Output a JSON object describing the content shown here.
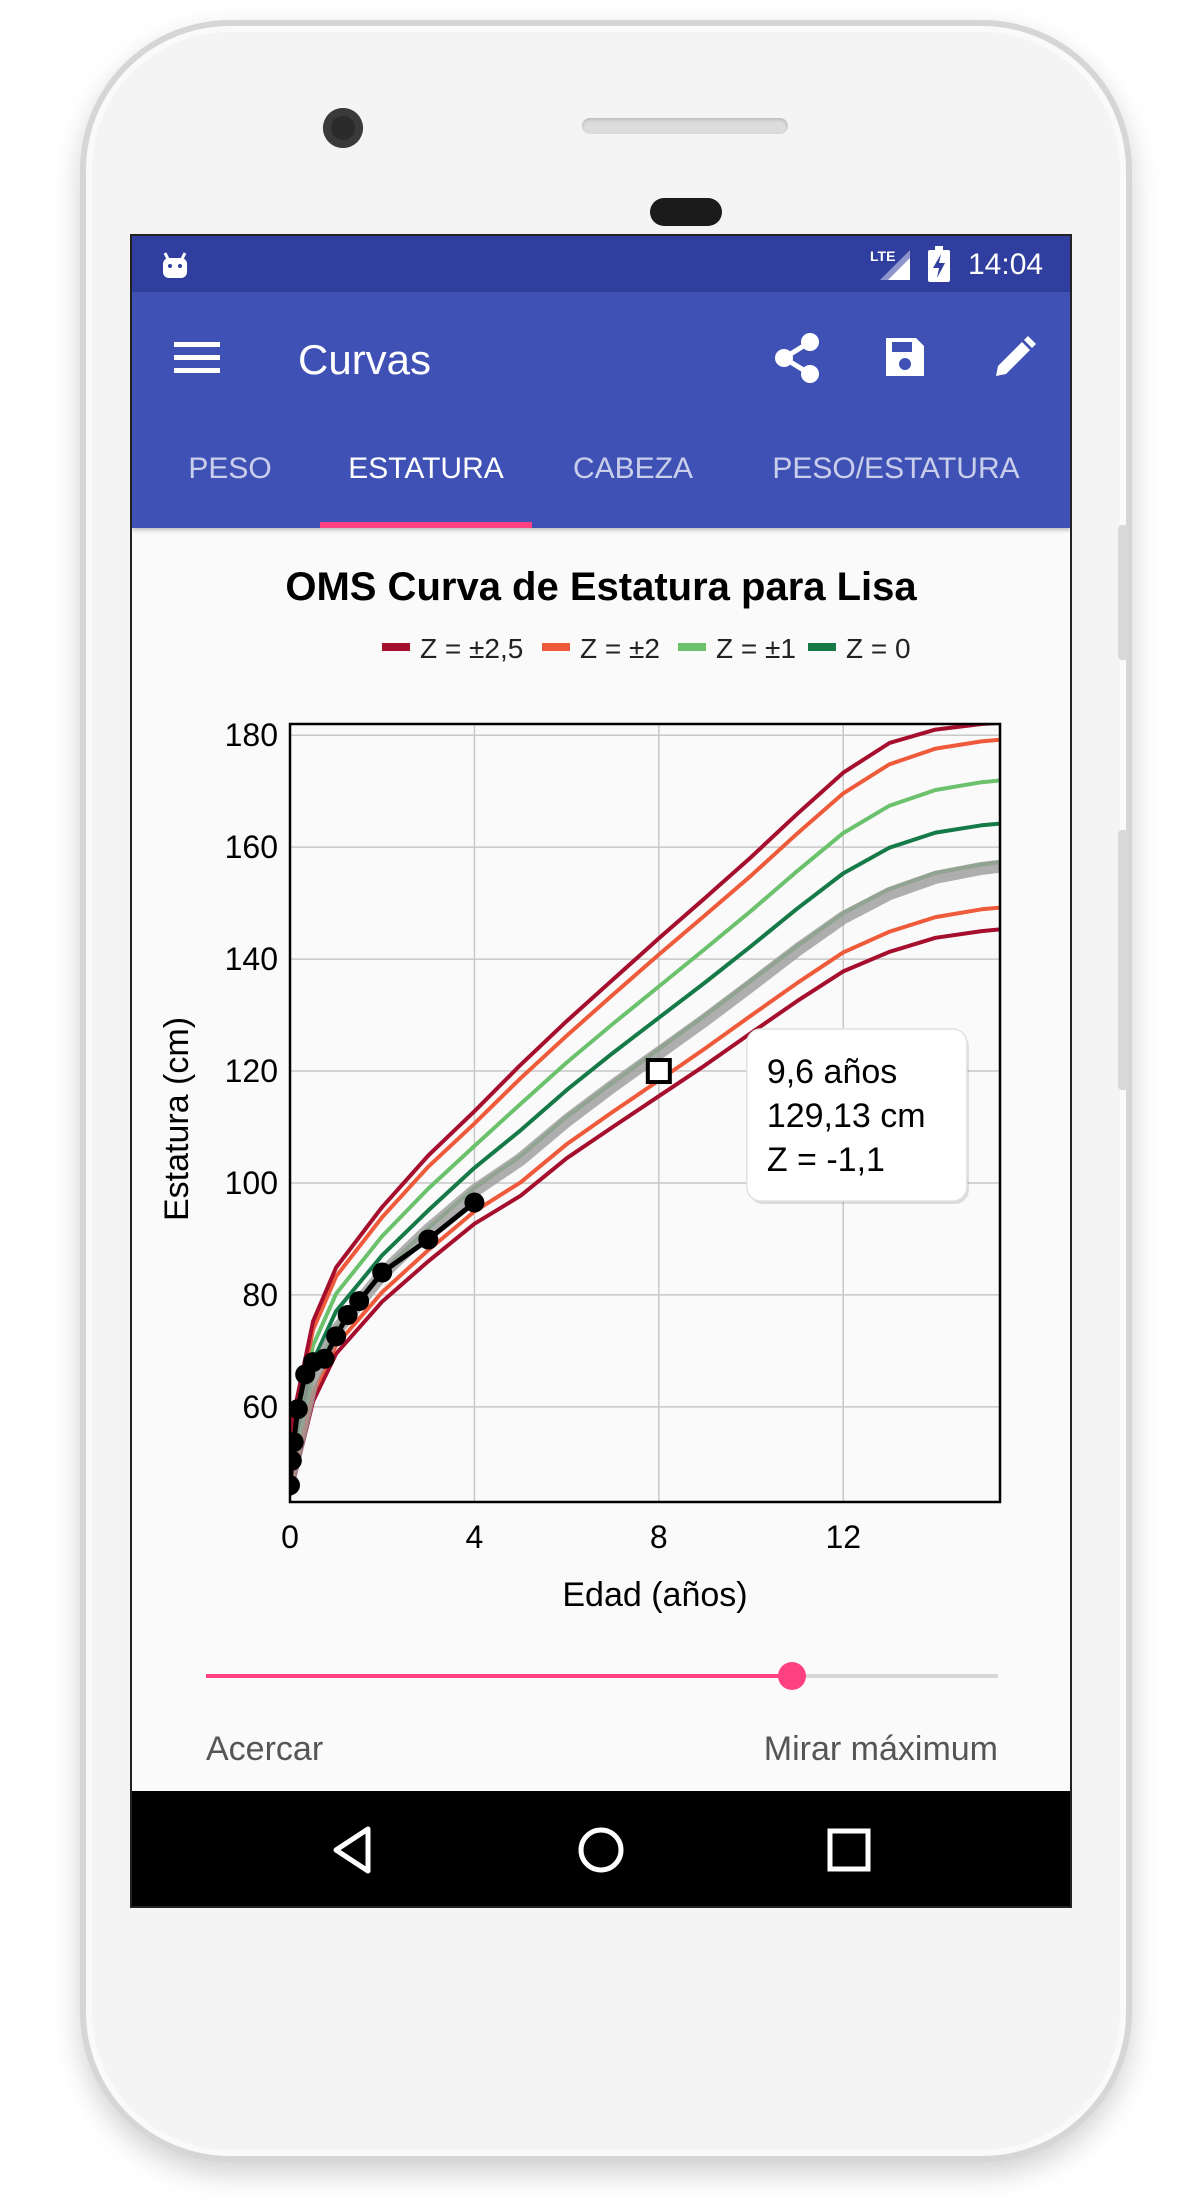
{
  "status_bar": {
    "network": "LTE",
    "time": "14:04"
  },
  "app_bar": {
    "title": "Curvas",
    "actions": [
      {
        "name": "share-icon"
      },
      {
        "name": "save-icon"
      },
      {
        "name": "edit-icon"
      }
    ]
  },
  "tabs": [
    {
      "label": "PESO",
      "active": false
    },
    {
      "label": "ESTATURA",
      "active": true
    },
    {
      "label": "CABEZA",
      "active": false
    },
    {
      "label": "PESO/ESTATURA",
      "active": false
    }
  ],
  "chart_data": {
    "type": "line",
    "title": "OMS Curva de Estatura para Lisa",
    "xlabel": "Edad (años)",
    "ylabel": "Estatura (cm)",
    "xlim": [
      0,
      15.4
    ],
    "ylim": [
      43,
      182
    ],
    "xticks": [
      0,
      4,
      8,
      12
    ],
    "yticks": [
      60,
      80,
      100,
      120,
      140,
      160,
      180
    ],
    "grid": true,
    "legend_position": "top",
    "legend": [
      {
        "label": "Z = ±2,5",
        "color": "#a50f2d"
      },
      {
        "label": "Z = ±2",
        "color": "#ef5a3a"
      },
      {
        "label": "Z = ±1",
        "color": "#6cc26c"
      },
      {
        "label": "Z = 0",
        "color": "#157a48"
      }
    ],
    "x": [
      0,
      0.5,
      1,
      2,
      3,
      4,
      5,
      6,
      7,
      8,
      9,
      10,
      11,
      12,
      13,
      14,
      15,
      15.4
    ],
    "series": [
      {
        "group": "Z = ±2,5",
        "color": "#a50f2d",
        "values": [
          44.2,
          61.0,
          69.5,
          78.8,
          86.0,
          92.7,
          97.7,
          104.4,
          110.0,
          115.5,
          121.0,
          126.8,
          132.5,
          137.8,
          141.3,
          143.8,
          145.0,
          145.3
        ]
      },
      {
        "group": "Z = ±2",
        "color": "#ef5a3a",
        "values": [
          45.4,
          62.5,
          71.0,
          80.5,
          88.0,
          94.9,
          100.1,
          106.9,
          112.7,
          118.3,
          124.0,
          129.9,
          135.7,
          141.2,
          144.9,
          147.5,
          148.9,
          149.2
        ]
      },
      {
        "group": "Z = ±1",
        "color": "#6cc26c",
        "values": [
          47.7,
          65.4,
          74.0,
          84.1,
          91.9,
          99.1,
          104.8,
          111.8,
          117.9,
          123.9,
          129.9,
          136.1,
          142.3,
          148.2,
          152.5,
          155.4,
          156.9,
          157.3
        ]
      },
      {
        "group": "Z = 0",
        "color": "#157a48",
        "values": [
          49.9,
          68.2,
          77.1,
          87.1,
          95.1,
          102.7,
          109.4,
          116.6,
          123.2,
          129.5,
          135.8,
          142.3,
          149.0,
          155.3,
          159.9,
          162.6,
          163.9,
          164.2
        ]
      },
      {
        "group": "Z = ±1",
        "color": "#6cc26c",
        "values": [
          52.1,
          71.0,
          80.2,
          90.5,
          99.0,
          106.6,
          114.1,
          121.5,
          128.4,
          135.1,
          141.8,
          148.6,
          155.7,
          162.5,
          167.4,
          170.2,
          171.6,
          171.9
        ]
      },
      {
        "group": "Z = ±2",
        "color": "#ef5a3a",
        "values": [
          54.3,
          73.8,
          83.3,
          93.9,
          102.9,
          110.6,
          118.7,
          126.3,
          133.6,
          140.8,
          147.8,
          154.9,
          162.4,
          169.6,
          174.8,
          177.6,
          178.9,
          179.2
        ]
      },
      {
        "group": "Z = ±2,5",
        "color": "#a50f2d",
        "values": [
          55.5,
          75.3,
          84.9,
          95.7,
          104.9,
          112.8,
          121.1,
          128.9,
          136.3,
          143.7,
          150.9,
          158.2,
          165.9,
          173.3,
          178.6,
          181.0,
          182.0,
          182.2
        ]
      },
      {
        "group": "Z = -1,1 (Lisa)",
        "color": "#9b9b9b",
        "values": [
          47.4,
          65.2,
          73.6,
          83.7,
          91.6,
          98.6,
          104.2,
          111.1,
          117.3,
          123.2,
          129.1,
          135.3,
          141.6,
          147.4,
          151.7,
          154.6,
          156.2,
          156.6
        ]
      }
    ],
    "measurements": {
      "x": [
        0,
        0.04,
        0.08,
        0.17,
        0.33,
        0.5,
        0.75,
        1.0,
        1.25,
        1.5,
        2.0,
        3.0,
        4.0
      ],
      "y": [
        46.0,
        50.4,
        53.7,
        59.6,
        65.8,
        68.0,
        68.6,
        72.6,
        76.4,
        78.9,
        84.0,
        89.9,
        96.5
      ]
    },
    "highlight": {
      "x": 8.0,
      "y": 120.0
    },
    "tooltip": {
      "lines": [
        "9,6 años",
        "129,13 cm",
        "Z = -1,1"
      ]
    }
  },
  "slider": {
    "value": 0.74,
    "color": "#ff4081",
    "left_label": "Acercar",
    "right_label": "Mirar máximum"
  }
}
